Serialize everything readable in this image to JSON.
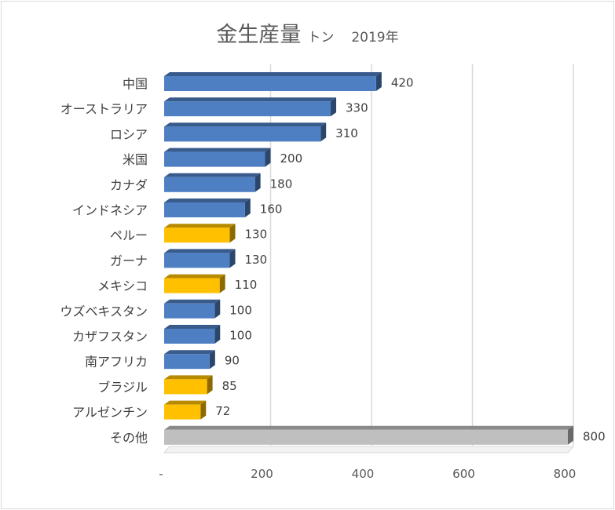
{
  "chart_data": {
    "type": "bar",
    "orientation": "horizontal",
    "title": "金生産量",
    "title_unit": "トン",
    "title_year": "2019年",
    "categories": [
      "中国",
      "オーストラリア",
      "ロシア",
      "米国",
      "カナダ",
      "インドネシア",
      "ペルー",
      "ガーナ",
      "メキシコ",
      "ウズベキスタン",
      "カザフスタン",
      "南アフリカ",
      "ブラジル",
      "アルゼンチン",
      "その他"
    ],
    "values": [
      420,
      330,
      310,
      200,
      180,
      160,
      130,
      130,
      110,
      100,
      100,
      90,
      85,
      72,
      800
    ],
    "value_labels": [
      "420",
      "330",
      "310",
      "200",
      "180",
      "160",
      "130",
      "130",
      "110",
      "100",
      "100",
      "90",
      "85",
      "72",
      "800"
    ],
    "bar_colors": [
      "#4e7fc3",
      "#4e7fc3",
      "#4e7fc3",
      "#4e7fc3",
      "#4e7fc3",
      "#4e7fc3",
      "#ffc000",
      "#4e7fc3",
      "#ffc000",
      "#4e7fc3",
      "#4e7fc3",
      "#4e7fc3",
      "#ffc000",
      "#ffc000",
      "#bfbfbf"
    ],
    "xlim": [
      0,
      800
    ],
    "xticks": [
      0,
      200,
      400,
      600,
      800
    ],
    "xtick_labels": [
      "-",
      "200",
      "400",
      "600",
      "800"
    ],
    "grid": true,
    "legend": "none",
    "style": "3d"
  }
}
